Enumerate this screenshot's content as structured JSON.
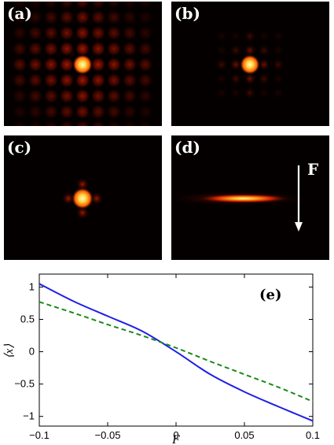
{
  "panels": [
    {
      "id": "a",
      "label": "(a)"
    },
    {
      "id": "b",
      "label": "(b)"
    },
    {
      "id": "c",
      "label": "(c)"
    },
    {
      "id": "d",
      "label": "(d)",
      "force_label": "F"
    }
  ],
  "colors": {
    "background": "#040000",
    "core": "#ffff80",
    "hot": "#ff7a10",
    "warm": "#d42000",
    "dim": "#5a0500",
    "series1": "#1f1fe6",
    "series2": "#1a8a1a"
  },
  "chart_data": {
    "type": "line",
    "panel_label": "(e)",
    "xlabel": "F",
    "ylabel": "⟨x⟩",
    "xlim": [
      -0.1,
      0.1
    ],
    "ylim": [
      -1.15,
      1.2
    ],
    "xticks": [
      -0.1,
      -0.05,
      0,
      0.05,
      0.1
    ],
    "xtick_labels": [
      "−0.1",
      "−0.05",
      "0",
      "0.05",
      "0.1"
    ],
    "yticks": [
      -1,
      -0.5,
      0,
      0.5,
      1
    ],
    "ytick_labels": [
      "−1",
      "−0.5",
      "0",
      "0.5",
      "1"
    ],
    "series": [
      {
        "style": "solid",
        "color": "#1f1fe6",
        "x": [
          -0.1,
          -0.075,
          -0.05,
          -0.025,
          0,
          0.025,
          0.05,
          0.075,
          0.1
        ],
        "y": [
          1.05,
          0.78,
          0.55,
          0.32,
          0.0,
          -0.35,
          -0.62,
          -0.85,
          -1.07
        ]
      },
      {
        "style": "dashed",
        "color": "#1a8a1a",
        "x": [
          -0.1,
          -0.075,
          -0.05,
          -0.025,
          0,
          0.025,
          0.05,
          0.075,
          0.1
        ],
        "y": [
          0.77,
          0.6,
          0.42,
          0.25,
          0.06,
          -0.15,
          -0.35,
          -0.55,
          -0.77
        ]
      }
    ]
  }
}
